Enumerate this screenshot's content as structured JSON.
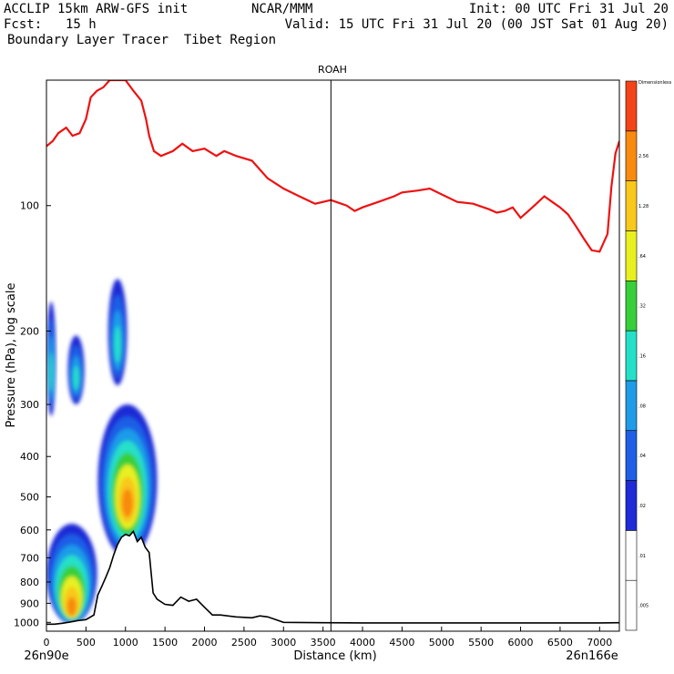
{
  "header": {
    "model": "ACCLIP 15km ARW-GFS init",
    "org": "NCAR/MMM",
    "init": "Init: 00 UTC Fri 31 Jul 20",
    "fcst_label": "Fcst:",
    "fcst_value": "15 h",
    "valid": "Valid: 15 UTC Fri 31 Jul 20 (00 JST Sat 01 Aug 20)",
    "product": "Boundary Layer Tracer  Tibet Region"
  },
  "colors": {
    "red_line": "#ee1111",
    "terrain": "#000000",
    "bands": [
      "#ffffff",
      "#ffffff",
      "#1f2bd6",
      "#1e5fe6",
      "#1f9be8",
      "#25e0c8",
      "#38cf3a",
      "#e8f020",
      "#f8c81a",
      "#f88a10",
      "#f24418"
    ]
  },
  "chart_data": {
    "type": "cross-section",
    "title": "ROAH",
    "xlabel": "Distance (km)",
    "ylabel": "Pressure (hPa), log scale",
    "xlim": [
      0,
      7250
    ],
    "ylim_hpa": [
      1050,
      50
    ],
    "x_ticks": [
      0,
      500,
      1000,
      1500,
      2000,
      2500,
      3000,
      3500,
      4000,
      4500,
      5000,
      5500,
      6000,
      6500,
      7000
    ],
    "y_ticks": [
      100,
      200,
      300,
      400,
      500,
      600,
      700,
      800,
      900,
      1000
    ],
    "left_endpoint": "26n90e",
    "right_endpoint": "26n166e",
    "marker_line_km": 3600,
    "colorbar": {
      "top_label": "Dimensionless",
      "levels": [
        ".005",
        ".01",
        ".02",
        ".04",
        ".08",
        ".16",
        ".32",
        ".64",
        "1.28",
        "2.56"
      ]
    },
    "red_line_km_hpa": [
      [
        0,
        72
      ],
      [
        80,
        70
      ],
      [
        150,
        67
      ],
      [
        250,
        65
      ],
      [
        330,
        68
      ],
      [
        420,
        67
      ],
      [
        500,
        62
      ],
      [
        560,
        55
      ],
      [
        640,
        53
      ],
      [
        720,
        52
      ],
      [
        800,
        50
      ],
      [
        900,
        50
      ],
      [
        1000,
        50
      ],
      [
        1100,
        53
      ],
      [
        1200,
        56
      ],
      [
        1260,
        62
      ],
      [
        1300,
        68
      ],
      [
        1360,
        74
      ],
      [
        1450,
        76
      ],
      [
        1600,
        74
      ],
      [
        1720,
        71
      ],
      [
        1850,
        74
      ],
      [
        2000,
        73
      ],
      [
        2150,
        76
      ],
      [
        2250,
        74
      ],
      [
        2400,
        76
      ],
      [
        2600,
        78
      ],
      [
        2800,
        86
      ],
      [
        3000,
        91
      ],
      [
        3200,
        95
      ],
      [
        3400,
        99
      ],
      [
        3600,
        97
      ],
      [
        3800,
        100
      ],
      [
        3900,
        103
      ],
      [
        4000,
        101
      ],
      [
        4200,
        98
      ],
      [
        4400,
        95
      ],
      [
        4500,
        93
      ],
      [
        4700,
        92
      ],
      [
        4850,
        91
      ],
      [
        5000,
        94
      ],
      [
        5200,
        98
      ],
      [
        5400,
        99
      ],
      [
        5600,
        102
      ],
      [
        5700,
        104
      ],
      [
        5800,
        103
      ],
      [
        5900,
        101
      ],
      [
        6000,
        107
      ],
      [
        6100,
        103
      ],
      [
        6200,
        99
      ],
      [
        6300,
        95
      ],
      [
        6400,
        98
      ],
      [
        6500,
        101
      ],
      [
        6600,
        105
      ],
      [
        6700,
        112
      ],
      [
        6800,
        120
      ],
      [
        6900,
        128
      ],
      [
        7000,
        129
      ],
      [
        7100,
        117
      ],
      [
        7150,
        90
      ],
      [
        7200,
        75
      ],
      [
        7250,
        70
      ]
    ],
    "terrain_km_hpa": [
      [
        0,
        1010
      ],
      [
        100,
        1010
      ],
      [
        200,
        1005
      ],
      [
        300,
        998
      ],
      [
        400,
        990
      ],
      [
        500,
        985
      ],
      [
        600,
        960
      ],
      [
        650,
        860
      ],
      [
        700,
        820
      ],
      [
        750,
        780
      ],
      [
        800,
        740
      ],
      [
        850,
        690
      ],
      [
        900,
        650
      ],
      [
        950,
        625
      ],
      [
        1000,
        615
      ],
      [
        1050,
        620
      ],
      [
        1100,
        605
      ],
      [
        1150,
        640
      ],
      [
        1200,
        625
      ],
      [
        1250,
        660
      ],
      [
        1300,
        680
      ],
      [
        1350,
        850
      ],
      [
        1400,
        880
      ],
      [
        1500,
        905
      ],
      [
        1600,
        910
      ],
      [
        1700,
        870
      ],
      [
        1800,
        890
      ],
      [
        1900,
        880
      ],
      [
        2000,
        920
      ],
      [
        2100,
        960
      ],
      [
        2200,
        960
      ],
      [
        2400,
        970
      ],
      [
        2600,
        975
      ],
      [
        2700,
        965
      ],
      [
        2800,
        970
      ],
      [
        2900,
        985
      ],
      [
        3000,
        1000
      ],
      [
        3500,
        1002
      ],
      [
        4000,
        1003
      ],
      [
        5000,
        1003
      ],
      [
        6000,
        1003
      ],
      [
        7000,
        1003
      ],
      [
        7250,
        1002
      ]
    ],
    "tracer_plumes": [
      {
        "name": "surface-plume",
        "x_km": [
          0,
          640
        ],
        "p_top_hpa": 580,
        "p_bottom_hpa": 1010
      },
      {
        "name": "mountain-plume",
        "x_km": [
          650,
          1400
        ],
        "p_top_hpa": 300,
        "p_bottom_hpa": 700
      },
      {
        "name": "upper-plume-a",
        "x_km": [
          0,
          120
        ],
        "p_top_hpa": 170,
        "p_bottom_hpa": 320
      },
      {
        "name": "upper-plume-b",
        "x_km": [
          270,
          480
        ],
        "p_top_hpa": 205,
        "p_bottom_hpa": 300
      },
      {
        "name": "upper-plume-c",
        "x_km": [
          780,
          1020
        ],
        "p_top_hpa": 150,
        "p_bottom_hpa": 270
      }
    ]
  }
}
